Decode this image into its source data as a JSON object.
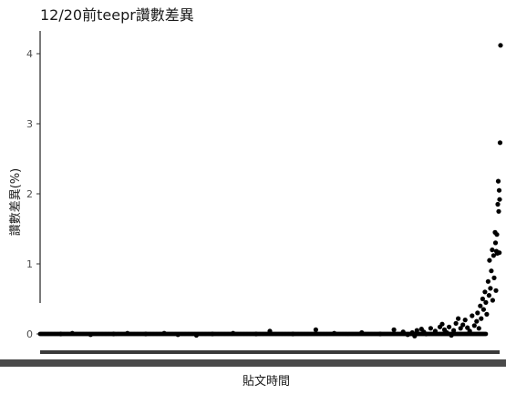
{
  "chart_data": {
    "type": "scatter",
    "title": "12/20前teepr讚數差異",
    "xlabel": "貼文時間",
    "ylabel": "讚數差異(%)",
    "ylim": [
      -0.25,
      4.3
    ],
    "yticks": [
      0,
      1,
      2,
      3,
      4
    ],
    "grid": false,
    "legend": "none",
    "point_color": "#000000",
    "baseline_points": 420,
    "points": [
      {
        "x": 0.045,
        "y": 0.0
      },
      {
        "x": 0.07,
        "y": 0.01
      },
      {
        "x": 0.11,
        "y": -0.01
      },
      {
        "x": 0.16,
        "y": 0.0
      },
      {
        "x": 0.19,
        "y": 0.01
      },
      {
        "x": 0.23,
        "y": 0.0
      },
      {
        "x": 0.27,
        "y": 0.01
      },
      {
        "x": 0.3,
        "y": -0.01
      },
      {
        "x": 0.34,
        "y": -0.02
      },
      {
        "x": 0.375,
        "y": 0.0
      },
      {
        "x": 0.42,
        "y": 0.01
      },
      {
        "x": 0.47,
        "y": 0.0
      },
      {
        "x": 0.5,
        "y": 0.04
      },
      {
        "x": 0.55,
        "y": 0.0
      },
      {
        "x": 0.6,
        "y": 0.06
      },
      {
        "x": 0.64,
        "y": 0.01
      },
      {
        "x": 0.7,
        "y": 0.02
      },
      {
        "x": 0.74,
        "y": 0.0
      },
      {
        "x": 0.77,
        "y": 0.06
      },
      {
        "x": 0.79,
        "y": 0.03
      },
      {
        "x": 0.8,
        "y": -0.01
      },
      {
        "x": 0.81,
        "y": 0.02
      },
      {
        "x": 0.815,
        "y": -0.03
      },
      {
        "x": 0.82,
        "y": 0.05
      },
      {
        "x": 0.83,
        "y": 0.07
      },
      {
        "x": 0.835,
        "y": 0.03
      },
      {
        "x": 0.84,
        "y": 0.0
      },
      {
        "x": 0.85,
        "y": 0.08
      },
      {
        "x": 0.86,
        "y": 0.04
      },
      {
        "x": 0.87,
        "y": 0.1
      },
      {
        "x": 0.875,
        "y": 0.14
      },
      {
        "x": 0.88,
        "y": 0.06
      },
      {
        "x": 0.885,
        "y": 0.02
      },
      {
        "x": 0.89,
        "y": 0.1
      },
      {
        "x": 0.895,
        "y": -0.02
      },
      {
        "x": 0.9,
        "y": 0.05
      },
      {
        "x": 0.905,
        "y": 0.15
      },
      {
        "x": 0.91,
        "y": 0.22
      },
      {
        "x": 0.915,
        "y": 0.08
      },
      {
        "x": 0.92,
        "y": 0.13
      },
      {
        "x": 0.925,
        "y": 0.2
      },
      {
        "x": 0.93,
        "y": 0.09
      },
      {
        "x": 0.935,
        "y": 0.04
      },
      {
        "x": 0.94,
        "y": 0.26
      },
      {
        "x": 0.945,
        "y": 0.12
      },
      {
        "x": 0.95,
        "y": 0.18
      },
      {
        "x": 0.952,
        "y": 0.3
      },
      {
        "x": 0.955,
        "y": 0.08
      },
      {
        "x": 0.958,
        "y": 0.4
      },
      {
        "x": 0.96,
        "y": 0.22
      },
      {
        "x": 0.963,
        "y": 0.5
      },
      {
        "x": 0.965,
        "y": 0.35
      },
      {
        "x": 0.968,
        "y": 0.6
      },
      {
        "x": 0.97,
        "y": 0.45
      },
      {
        "x": 0.972,
        "y": 0.28
      },
      {
        "x": 0.975,
        "y": 0.75
      },
      {
        "x": 0.977,
        "y": 0.55
      },
      {
        "x": 0.978,
        "y": 1.05
      },
      {
        "x": 0.98,
        "y": 0.65
      },
      {
        "x": 0.982,
        "y": 0.9
      },
      {
        "x": 0.984,
        "y": 1.2
      },
      {
        "x": 0.985,
        "y": 0.48
      },
      {
        "x": 0.987,
        "y": 1.12
      },
      {
        "x": 0.988,
        "y": 0.8
      },
      {
        "x": 0.99,
        "y": 1.45
      },
      {
        "x": 0.991,
        "y": 1.3
      },
      {
        "x": 0.992,
        "y": 0.62
      },
      {
        "x": 0.993,
        "y": 1.18
      },
      {
        "x": 0.994,
        "y": 1.42
      },
      {
        "x": 0.995,
        "y": 1.15
      },
      {
        "x": 0.996,
        "y": 1.85
      },
      {
        "x": 0.997,
        "y": 2.18
      },
      {
        "x": 0.998,
        "y": 1.75
      },
      {
        "x": 0.999,
        "y": 2.05
      },
      {
        "x": 1.0,
        "y": 1.92
      },
      {
        "x": 0.9995,
        "y": 1.16
      },
      {
        "x": 1.001,
        "y": 2.73
      },
      {
        "x": 1.002,
        "y": 4.12
      }
    ]
  }
}
